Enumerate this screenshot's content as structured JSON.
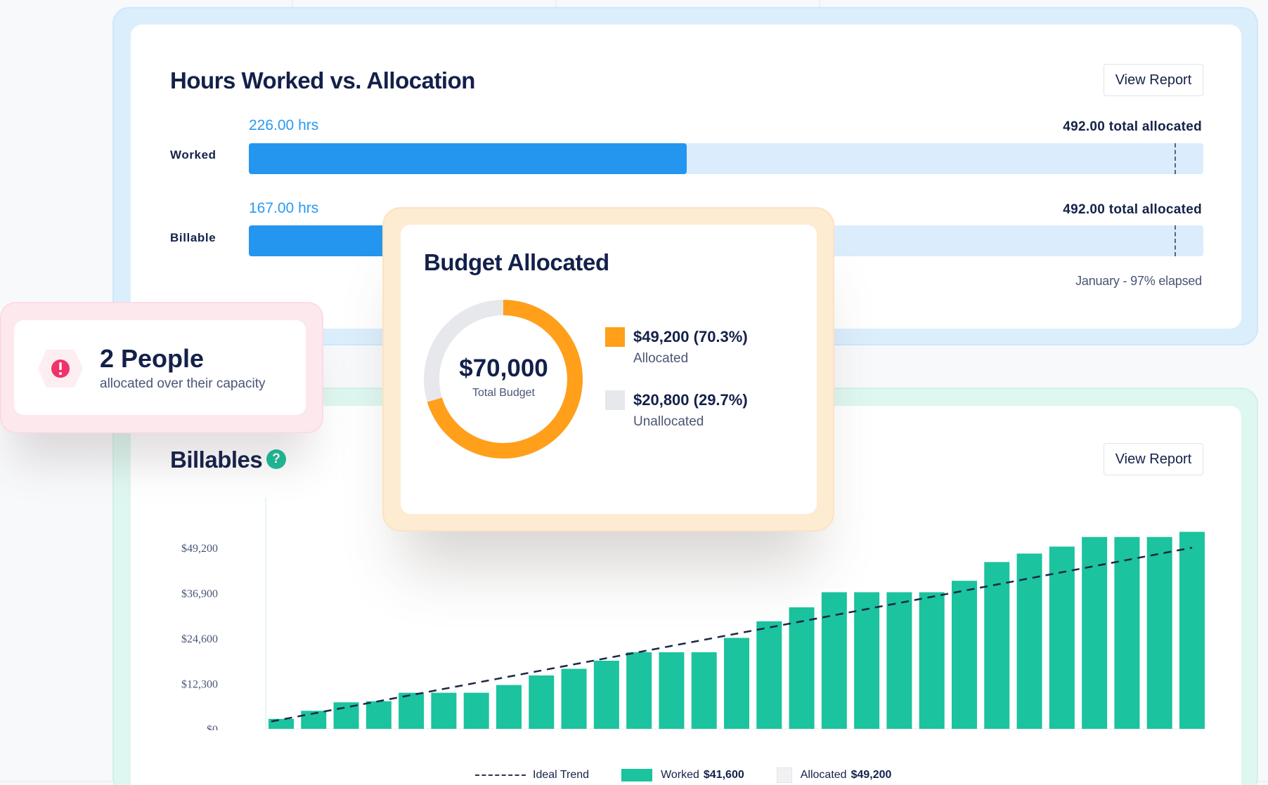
{
  "hours": {
    "title": "Hours Worked vs. Allocation",
    "view_report": "View Report",
    "rows": [
      {
        "label": "Worked",
        "hours_text": "226.00 hrs",
        "total_text": "492.00 total allocated",
        "fraction": 0.459,
        "marker_fraction": 0.97
      },
      {
        "label": "Billable",
        "hours_text": "167.00 hrs",
        "total_text": "492.00 total allocated",
        "fraction": 0.339,
        "marker_fraction": 0.97
      }
    ],
    "elapsed_text": "January - 97% elapsed"
  },
  "alert": {
    "title": "2 People",
    "subtitle": "allocated over their capacity",
    "icon": "exclamation-icon",
    "color": "#f0336a"
  },
  "budget": {
    "title": "Budget Allocated",
    "total": "$70,000",
    "total_label": "Total Budget",
    "allocated_fraction": 0.703,
    "items": [
      {
        "value": "$49,200 (70.3%)",
        "label": "Allocated",
        "color": "#ff9f1a"
      },
      {
        "value": "$20,800 (29.7%)",
        "label": "Unallocated",
        "color": "#e6e8ec"
      }
    ]
  },
  "billables": {
    "title": "Billables",
    "view_report": "View Report",
    "help_icon": "?"
  },
  "chart_data": {
    "type": "bar",
    "y_ticks": [
      "$49,200",
      "$36,900",
      "$24,600",
      "$12,300",
      "$0"
    ],
    "ylim": [
      0,
      49200
    ],
    "values": [
      2700,
      4900,
      7200,
      7500,
      9800,
      9800,
      9800,
      11900,
      14500,
      16300,
      18500,
      20800,
      20800,
      20800,
      24700,
      29200,
      33000,
      37100,
      37100,
      37100,
      37100,
      40200,
      45300,
      47600,
      49500,
      52100,
      52100,
      52100,
      53500
    ],
    "ideal_trend": [
      [
        0,
        2000
      ],
      [
        28,
        49200
      ]
    ],
    "legend": [
      {
        "name": "Ideal Trend",
        "style": "dashed"
      },
      {
        "name": "Worked",
        "amount": "$41,600",
        "color": "#1bc39e"
      },
      {
        "name": "Allocated",
        "amount": "$49,200",
        "color": "#f0f1f3"
      }
    ]
  }
}
